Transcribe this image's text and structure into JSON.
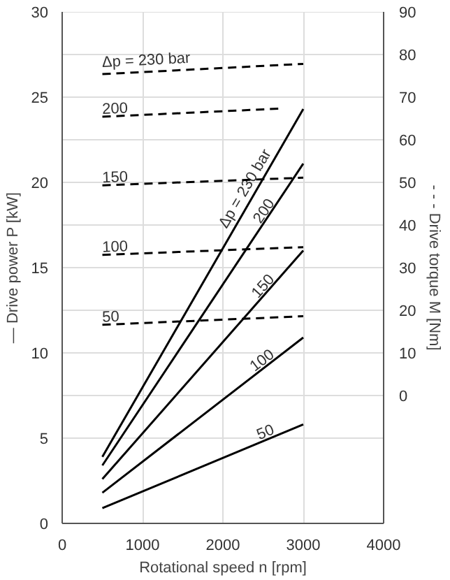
{
  "chart_data": {
    "type": "line",
    "xlabel": "Rotational speed n [rpm]",
    "ylabel": "— Drive power P [kW]",
    "y2label": "- - - Drive torque M [Nm]",
    "xlim": [
      0,
      4000
    ],
    "xticks": [
      0,
      1000,
      2000,
      3000,
      4000
    ],
    "ylim": [
      0,
      30
    ],
    "yticks": [
      0,
      5,
      10,
      15,
      20,
      25,
      30
    ],
    "y2lim": [
      -30,
      90
    ],
    "y2ticks": [
      0,
      10,
      20,
      30,
      40,
      50,
      60,
      70,
      80,
      90
    ],
    "grid": true,
    "series": [
      {
        "name": "Δp = 230 bar",
        "color": "#000000",
        "line_style": "solid",
        "x": [
          500,
          3000
        ],
        "values": [
          3.9,
          24.3
        ]
      },
      {
        "name": "200",
        "color": "#000000",
        "line_style": "solid",
        "x": [
          500,
          3000
        ],
        "values": [
          3.4,
          21.1
        ]
      },
      {
        "name": "150",
        "color": "#000000",
        "line_style": "solid",
        "x": [
          500,
          3000
        ],
        "values": [
          2.6,
          16.0
        ]
      },
      {
        "name": "100",
        "color": "#000000",
        "line_style": "solid",
        "x": [
          500,
          3000
        ],
        "values": [
          1.8,
          10.9
        ]
      },
      {
        "name": "50",
        "color": "#000000",
        "line_style": "solid",
        "x": [
          500,
          3000
        ],
        "values": [
          0.9,
          5.8
        ]
      },
      {
        "name": "Δp = 230 bar",
        "color": "#000000",
        "line_style": "dashed",
        "axis": "y2",
        "x": [
          500,
          3000
        ],
        "values": [
          75.4,
          77.8
        ]
      },
      {
        "name": "200",
        "color": "#000000",
        "line_style": "dashed",
        "axis": "y2",
        "x": [
          500,
          2700
        ],
        "values": [
          65.4,
          67.3
        ]
      },
      {
        "name": "150",
        "color": "#000000",
        "line_style": "dashed",
        "axis": "y2",
        "x": [
          500,
          3000
        ],
        "values": [
          49.3,
          51.1
        ]
      },
      {
        "name": "100",
        "color": "#000000",
        "line_style": "dashed",
        "axis": "y2",
        "x": [
          500,
          3000
        ],
        "values": [
          33.0,
          34.8
        ]
      },
      {
        "name": "50",
        "color": "#000000",
        "line_style": "dashed",
        "axis": "y2",
        "x": [
          500,
          3000
        ],
        "values": [
          16.6,
          18.6
        ]
      }
    ]
  }
}
